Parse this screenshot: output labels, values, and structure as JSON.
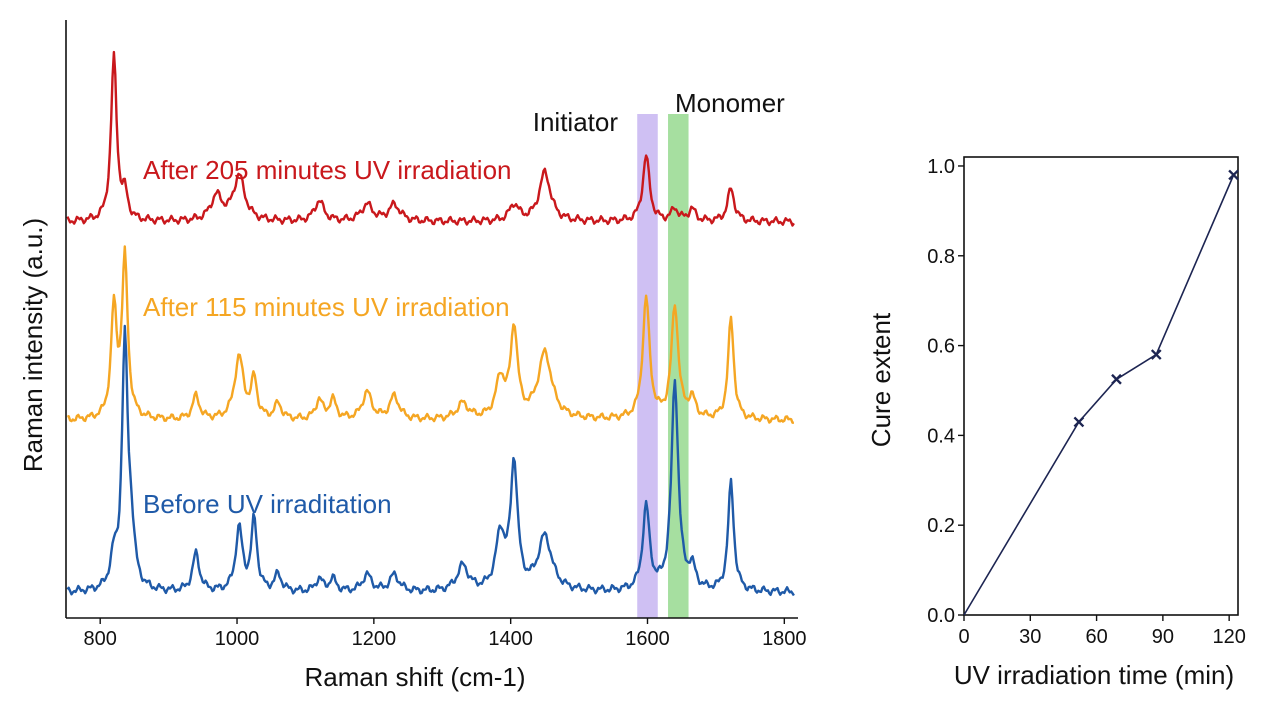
{
  "chart_data": [
    {
      "type": "line",
      "xlabel": "Raman shift (cm-1)",
      "ylabel": "Raman intensity (a.u.)",
      "xlim": [
        750,
        1820
      ],
      "xticks": [
        "800",
        "1000",
        "1200",
        "1400",
        "1600",
        "1800"
      ],
      "yticks": "none",
      "grid": false,
      "bands": [
        {
          "label": "Initiator",
          "range": [
            1585,
            1615
          ],
          "color": "#cfc0f3"
        },
        {
          "label": "Monomer",
          "range": [
            1630,
            1660
          ],
          "color": "#a6dfa0"
        }
      ],
      "series": [
        {
          "name": "Before UV irraditation",
          "color": "#1f5aa8",
          "baseline": 0.03,
          "peaks": [
            [
              820,
              0.07,
              6
            ],
            [
              836,
              0.58,
              5
            ],
            [
              845,
              0.12,
              6
            ],
            [
              940,
              0.09,
              6
            ],
            [
              1003,
              0.15,
              6
            ],
            [
              1025,
              0.17,
              5
            ],
            [
              1060,
              0.04,
              6
            ],
            [
              1120,
              0.03,
              6
            ],
            [
              1140,
              0.03,
              6
            ],
            [
              1190,
              0.04,
              8
            ],
            [
              1230,
              0.04,
              8
            ],
            [
              1330,
              0.06,
              10
            ],
            [
              1385,
              0.13,
              8
            ],
            [
              1405,
              0.3,
              6
            ],
            [
              1450,
              0.13,
              12
            ],
            [
              1598,
              0.2,
              6
            ],
            [
              1640,
              0.5,
              6
            ],
            [
              1665,
              0.05,
              6
            ],
            [
              1722,
              0.26,
              5
            ]
          ]
        },
        {
          "name": "After 115 minutes UV irradiation",
          "color": "#f5a623",
          "baseline": 0.03,
          "peaks": [
            [
              820,
              0.28,
              5
            ],
            [
              836,
              0.41,
              5
            ],
            [
              940,
              0.06,
              6
            ],
            [
              1003,
              0.16,
              8
            ],
            [
              1025,
              0.1,
              5
            ],
            [
              1060,
              0.04,
              6
            ],
            [
              1120,
              0.05,
              6
            ],
            [
              1140,
              0.05,
              6
            ],
            [
              1190,
              0.07,
              8
            ],
            [
              1230,
              0.06,
              8
            ],
            [
              1330,
              0.04,
              10
            ],
            [
              1385,
              0.1,
              8
            ],
            [
              1405,
              0.23,
              6
            ],
            [
              1450,
              0.17,
              12
            ],
            [
              1598,
              0.31,
              6
            ],
            [
              1640,
              0.29,
              6
            ],
            [
              1665,
              0.05,
              6
            ],
            [
              1722,
              0.26,
              5
            ]
          ]
        },
        {
          "name": "After 205 minutes UV irradiation",
          "color": "#c9181c",
          "baseline": 0.02,
          "peaks": [
            [
              820,
              0.4,
              5
            ],
            [
              836,
              0.06,
              5
            ],
            [
              970,
              0.06,
              10
            ],
            [
              1003,
              0.11,
              10
            ],
            [
              1120,
              0.05,
              8
            ],
            [
              1190,
              0.04,
              10
            ],
            [
              1230,
              0.04,
              10
            ],
            [
              1405,
              0.04,
              8
            ],
            [
              1450,
              0.12,
              10
            ],
            [
              1598,
              0.16,
              6
            ],
            [
              1640,
              0.03,
              6
            ],
            [
              1665,
              0.03,
              6
            ],
            [
              1722,
              0.08,
              6
            ]
          ]
        }
      ]
    },
    {
      "type": "line",
      "xlabel": "UV irradiation time (min)",
      "ylabel": "Cure extent",
      "xlim": [
        0,
        124
      ],
      "ylim": [
        0,
        1.02
      ],
      "xticks": [
        "0",
        "30",
        "60",
        "90",
        "120"
      ],
      "yticks": [
        "0.0",
        "0.2",
        "0.4",
        "0.6",
        "0.8",
        "1.0"
      ],
      "grid": false,
      "marker": "x",
      "color": "#1d2552",
      "x": [
        0,
        52,
        69,
        87,
        122
      ],
      "y": [
        0.0,
        0.43,
        0.525,
        0.58,
        0.98
      ]
    }
  ]
}
